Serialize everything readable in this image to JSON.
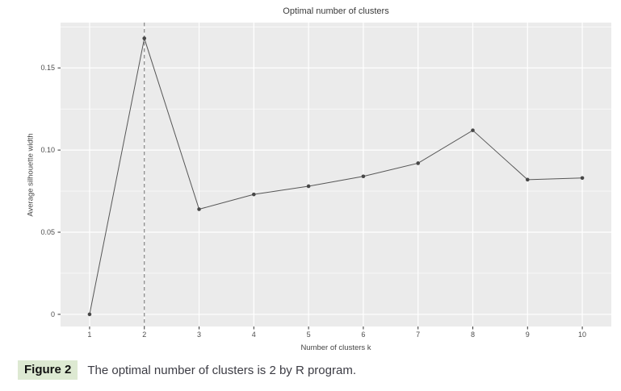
{
  "figure": {
    "label": "Figure 2",
    "caption": "The optimal number of clusters is 2 by R program."
  },
  "chart_data": {
    "type": "line",
    "title": "Optimal number of clusters",
    "xlabel": "Number of clusters k",
    "ylabel": "Average silhouette width",
    "x": [
      1,
      2,
      3,
      4,
      5,
      6,
      7,
      8,
      9,
      10
    ],
    "values": [
      0.0,
      0.168,
      0.064,
      0.073,
      0.078,
      0.084,
      0.092,
      0.112,
      0.082,
      0.083
    ],
    "series_name": "Average silhouette width",
    "x_tick_labels": [
      "1",
      "2",
      "3",
      "4",
      "5",
      "6",
      "7",
      "8",
      "9",
      "10"
    ],
    "y_ticks": [
      {
        "value": 0,
        "label": "0"
      },
      {
        "value": 0.05,
        "label": "0.05"
      },
      {
        "value": 0.1,
        "label": "0.10"
      },
      {
        "value": 0.15,
        "label": "0.15"
      }
    ],
    "y_minor_gridlines": [
      0.025,
      0.075,
      0.125,
      0.175
    ],
    "xlim": [
      0.47,
      10.53
    ],
    "ylim": [
      -0.0074,
      0.1776
    ],
    "dashed_vline_x": 2,
    "grid": true,
    "legend_position": "none",
    "colors": {
      "panel_bg": "#ebebeb",
      "gridline": "#ffffff",
      "line": "#565656",
      "point": "#474747",
      "dashed_line": "#7a7a7a",
      "tick": "#333333",
      "tick_label": "#4d4d4d"
    }
  }
}
